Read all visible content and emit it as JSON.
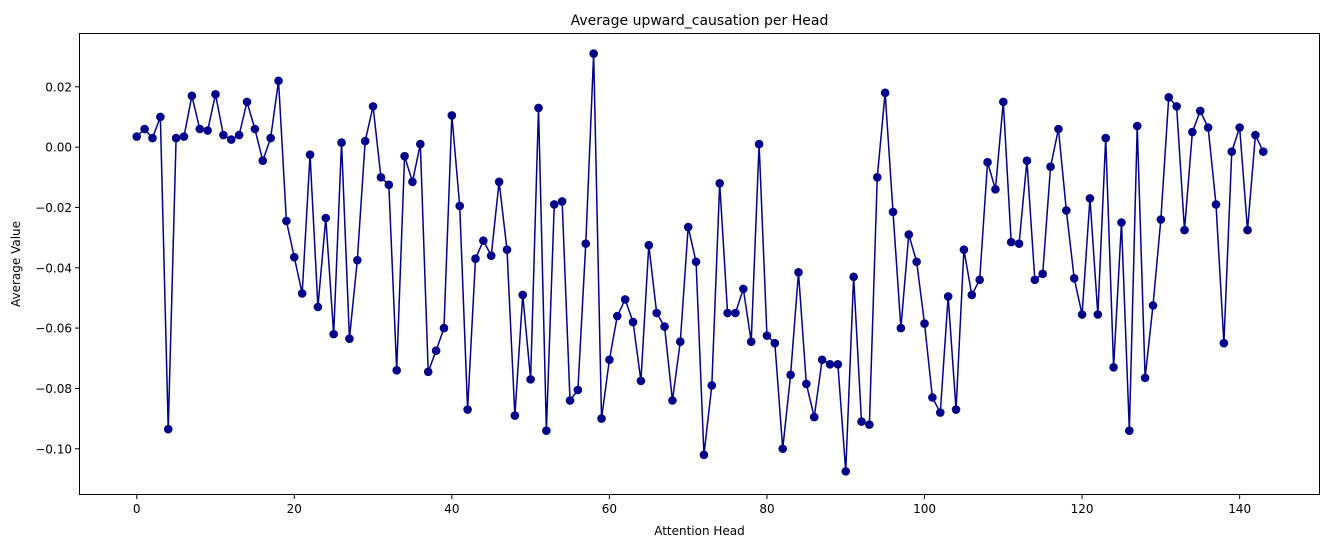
{
  "chart_data": {
    "type": "line",
    "title": "Average upward_causation per Head",
    "xlabel": "Attention Head",
    "ylabel": "Average Value",
    "xlim": [
      -7.2,
      150.2
    ],
    "ylim": [
      -0.115,
      0.0375
    ],
    "xticks": [
      0,
      20,
      40,
      60,
      80,
      100,
      120,
      140
    ],
    "xtick_labels": [
      "0",
      "20",
      "40",
      "60",
      "80",
      "100",
      "120",
      "140"
    ],
    "yticks": [
      -0.1,
      -0.08,
      -0.06,
      -0.04,
      -0.02,
      0.0,
      0.02
    ],
    "ytick_labels": [
      "−0.10",
      "−0.08",
      "−0.06",
      "−0.04",
      "−0.02",
      "0.00",
      "0.02"
    ],
    "grid": false,
    "marker": "circle",
    "color": "#00008b",
    "series": [
      {
        "x": [
          0,
          1,
          2,
          3,
          4,
          5,
          6,
          7,
          8,
          9,
          10,
          11,
          12,
          13,
          14,
          15,
          16,
          17,
          18,
          19,
          20,
          21,
          22,
          23,
          24,
          25,
          26,
          27,
          28,
          29,
          30,
          31,
          32,
          33,
          34,
          35,
          36,
          37,
          38,
          39,
          40,
          41,
          42,
          43,
          44,
          45,
          46,
          47,
          48,
          49,
          50,
          51,
          52,
          53,
          54,
          55,
          56,
          57,
          58,
          59,
          60,
          61,
          62,
          63,
          64,
          65,
          66,
          67,
          68,
          69,
          70,
          71,
          72,
          73,
          74,
          75,
          76,
          77,
          78,
          79,
          80,
          81,
          82,
          83,
          84,
          85,
          86,
          87,
          88,
          89,
          90,
          91,
          92,
          93,
          94,
          95,
          96,
          97,
          98,
          99,
          100,
          101,
          102,
          103,
          104,
          105,
          106,
          107,
          108,
          109,
          110,
          111,
          112,
          113,
          114,
          115,
          116,
          117,
          118,
          119,
          120,
          121,
          122,
          123,
          124,
          125,
          126,
          127,
          128,
          129,
          130,
          131,
          132,
          133,
          134,
          135,
          136,
          137,
          138,
          139,
          140,
          141,
          142,
          143
        ],
        "values": [
          0.0035,
          0.006,
          0.003,
          0.01,
          -0.0935,
          0.003,
          0.0035,
          0.017,
          0.006,
          0.0055,
          0.0175,
          0.004,
          0.0025,
          0.004,
          0.015,
          0.006,
          -0.0045,
          0.003,
          0.022,
          -0.0245,
          -0.0365,
          -0.0485,
          -0.0025,
          -0.053,
          -0.0235,
          -0.062,
          0.0015,
          -0.0635,
          -0.0375,
          0.002,
          0.0135,
          -0.01,
          -0.0125,
          -0.074,
          -0.003,
          -0.0115,
          0.001,
          -0.0745,
          -0.0675,
          -0.06,
          0.0105,
          -0.0195,
          -0.087,
          -0.037,
          -0.031,
          -0.036,
          -0.0115,
          -0.034,
          -0.089,
          -0.049,
          -0.077,
          0.013,
          -0.094,
          -0.019,
          -0.018,
          -0.084,
          -0.0805,
          -0.032,
          0.031,
          -0.09,
          -0.0705,
          -0.056,
          -0.0505,
          -0.058,
          -0.0775,
          -0.0325,
          -0.055,
          -0.0595,
          -0.084,
          -0.0645,
          -0.0265,
          -0.038,
          -0.102,
          -0.079,
          -0.012,
          -0.055,
          -0.055,
          -0.047,
          -0.0645,
          0.001,
          -0.0625,
          -0.065,
          -0.1,
          -0.0755,
          -0.0415,
          -0.0785,
          -0.0895,
          -0.0705,
          -0.072,
          -0.072,
          -0.1075,
          -0.043,
          -0.091,
          -0.092,
          -0.01,
          0.018,
          -0.0215,
          -0.06,
          -0.029,
          -0.038,
          -0.0585,
          -0.083,
          -0.088,
          -0.0495,
          -0.087,
          -0.034,
          -0.049,
          -0.044,
          -0.005,
          -0.014,
          0.015,
          -0.0315,
          -0.032,
          -0.0045,
          -0.044,
          -0.042,
          -0.0065,
          0.006,
          -0.021,
          -0.0435,
          -0.0555,
          -0.017,
          -0.0555,
          0.003,
          -0.073,
          -0.025,
          -0.094,
          0.007,
          -0.0765,
          -0.0525,
          -0.024,
          0.0165,
          0.0135,
          -0.0275,
          0.005,
          0.012,
          0.0065,
          -0.019,
          -0.065,
          -0.0015,
          0.0065,
          -0.0275,
          0.004,
          -0.0015
        ]
      }
    ]
  }
}
